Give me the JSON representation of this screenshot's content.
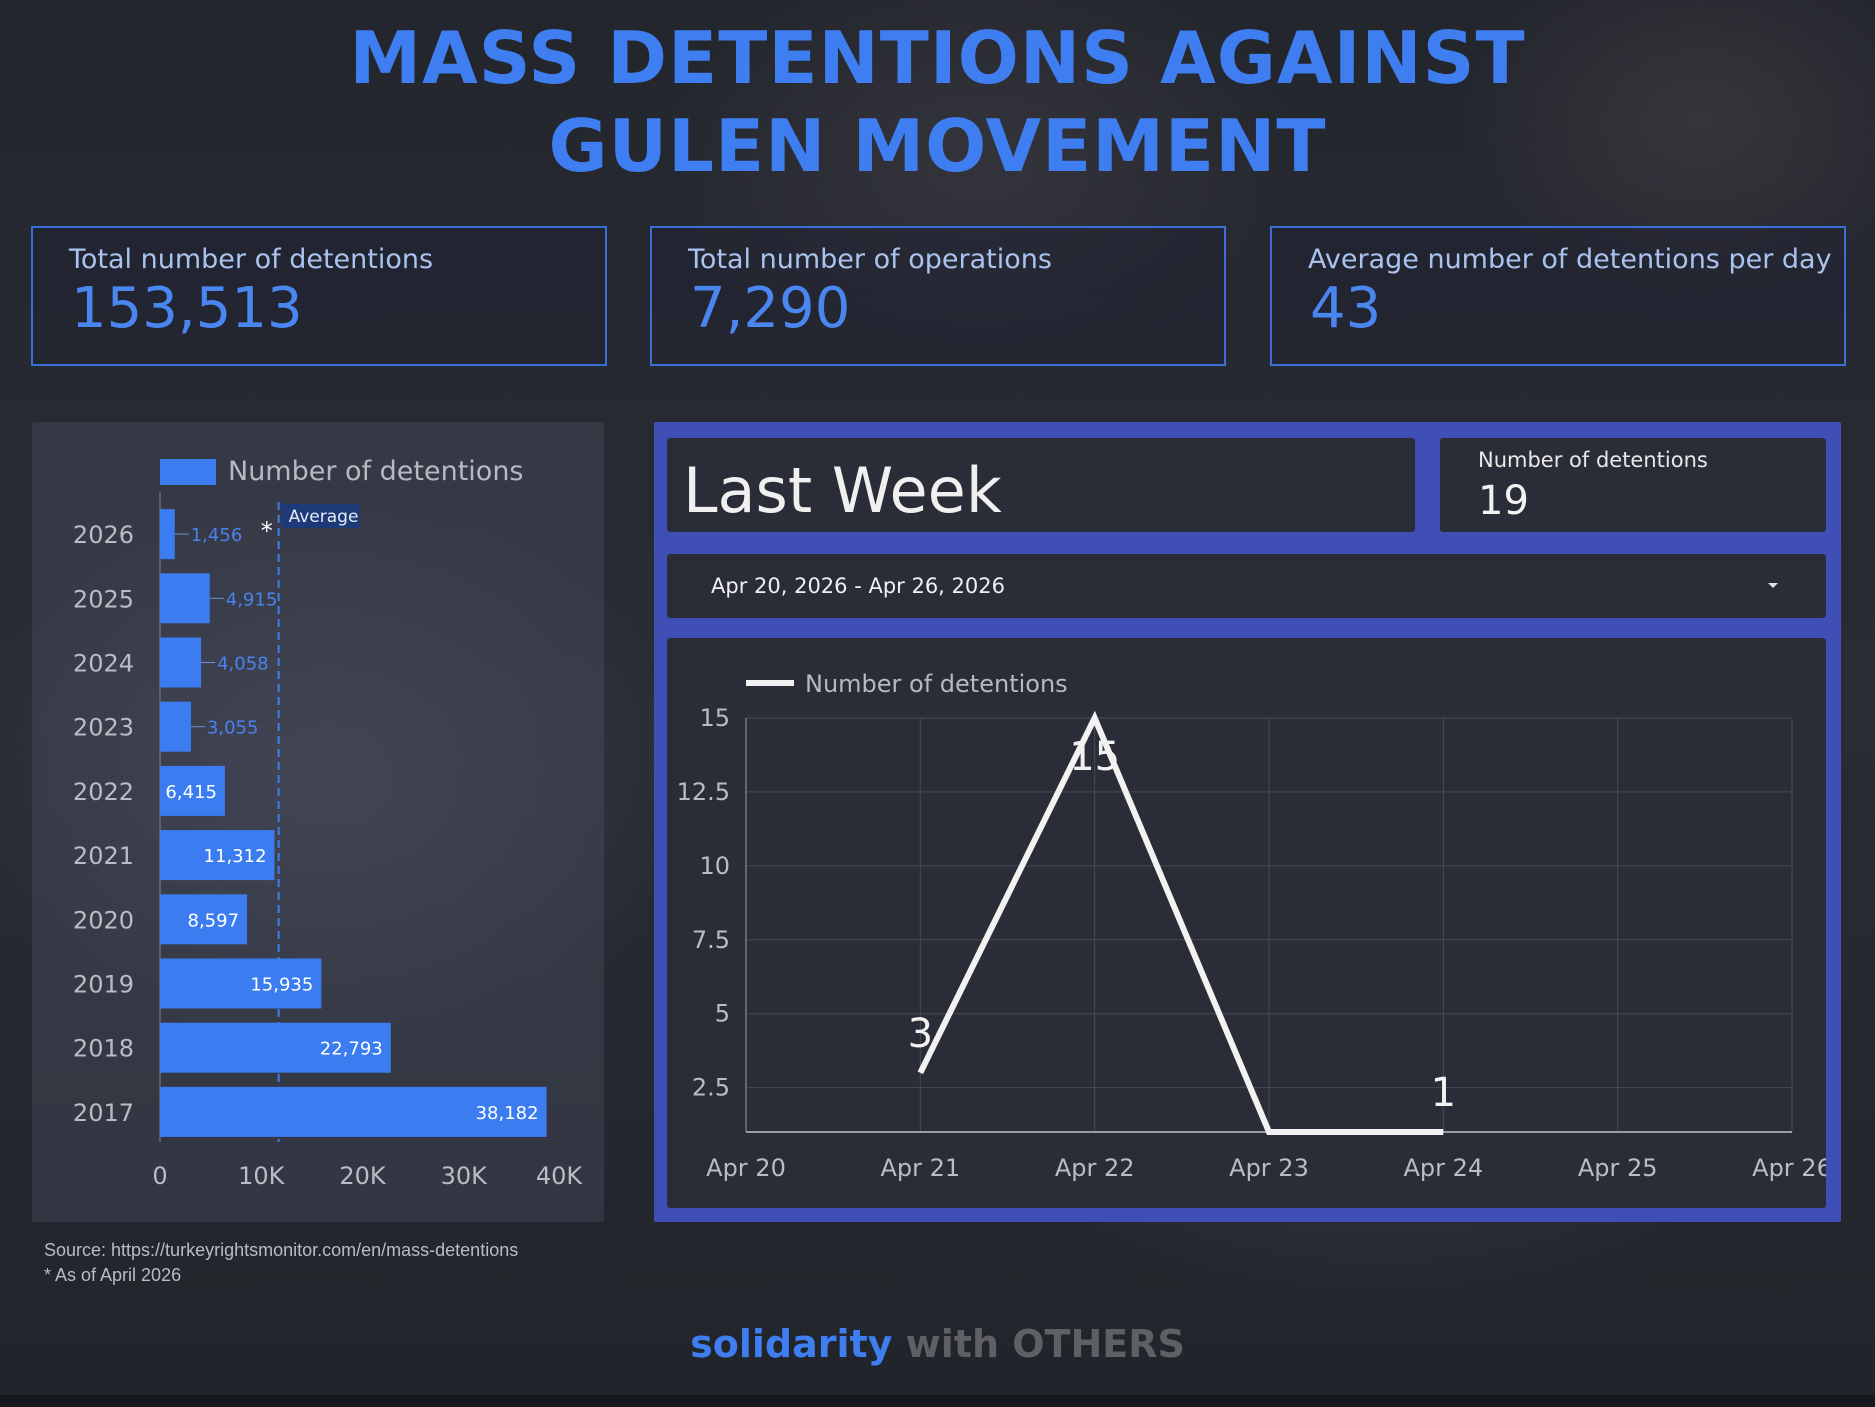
{
  "title_line1": "MASS DETENTIONS AGAINST",
  "title_line2": "GULEN MOVEMENT",
  "kpis": [
    {
      "label": "Total number of detentions",
      "value": "153,513"
    },
    {
      "label": "Total number of operations",
      "value": "7,290"
    },
    {
      "label": "Average number of detentions per day",
      "value": "43"
    }
  ],
  "last_week": {
    "title": "Last Week",
    "count_label": "Number of detentions",
    "count_value": "19",
    "date_range": "Apr 20, 2026 - Apr 26, 2026"
  },
  "notes": {
    "source": "Source: https://turkeyrightsmonitor.com/en/mass-detentions",
    "asof": "* As of April 2026"
  },
  "footer": {
    "part1": "solidarity",
    "part2": "with OTHERS"
  },
  "colors": {
    "accent": "#3f7ef0",
    "bar": "#3b7df0",
    "line": "#f2f2f2",
    "panel_border": "#3f4fb6"
  },
  "chart_data": [
    {
      "type": "bar",
      "orientation": "horizontal",
      "legend": "Number of detentions",
      "categories": [
        "2026",
        "2025",
        "2024",
        "2023",
        "2022",
        "2021",
        "2020",
        "2019",
        "2018",
        "2017"
      ],
      "values": [
        1456,
        4915,
        4058,
        3055,
        6415,
        11312,
        8597,
        15935,
        22793,
        38182
      ],
      "value_labels": [
        "1,456",
        "4,915",
        "4,058",
        "3,055",
        "6,415",
        "11,312",
        "8,597",
        "15,935",
        "22,793",
        "38,182"
      ],
      "category_marks": {
        "2026": "*"
      },
      "reference_line": {
        "label": "Average",
        "value": 11716
      },
      "xlim": [
        0,
        40000
      ],
      "xticks": [
        "0",
        "10K",
        "20K",
        "30K",
        "40K"
      ],
      "grid": false,
      "legend_position": "top"
    },
    {
      "type": "line",
      "legend": "Number of detentions",
      "x": [
        "Apr 20",
        "Apr 21",
        "Apr 22",
        "Apr 23",
        "Apr 24",
        "Apr 25",
        "Apr 26"
      ],
      "points": [
        {
          "x": "Apr 21",
          "y": 3
        },
        {
          "x": "Apr 22",
          "y": 15
        },
        {
          "x": "Apr 23",
          "y": 0
        },
        {
          "x": "Apr 24",
          "y": 1
        }
      ],
      "point_labels": [
        "3",
        "15",
        "",
        "1"
      ],
      "ylim": [
        1,
        15
      ],
      "yticks": [
        "2.5",
        "5",
        "7.5",
        "10",
        "12.5",
        "15"
      ],
      "grid": true,
      "legend_position": "top-left"
    }
  ]
}
